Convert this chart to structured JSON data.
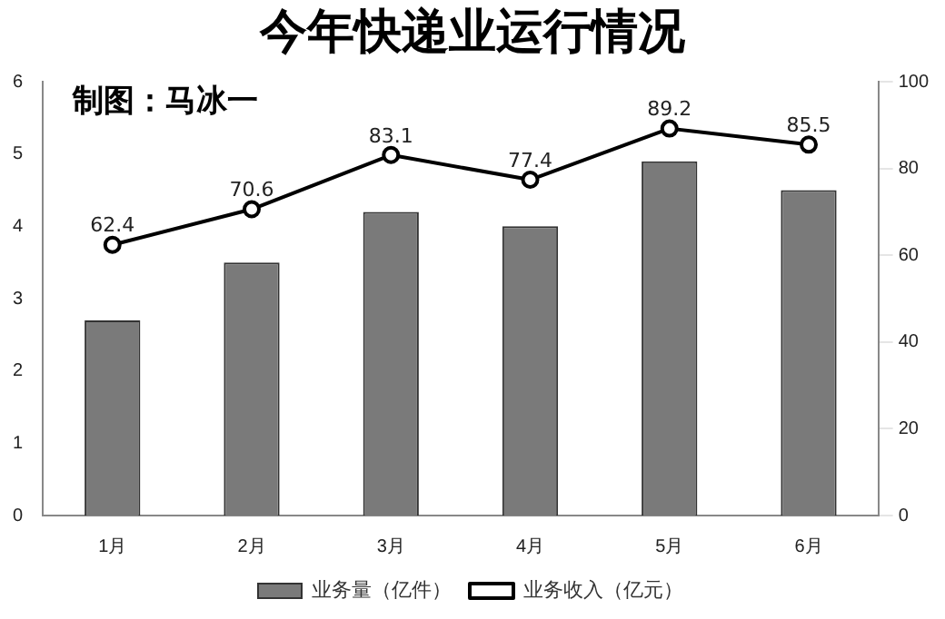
{
  "chart_data": {
    "type": "bar",
    "title": "今年快递业运行情况",
    "subtitle": "制图：马冰一",
    "categories": [
      "1月",
      "2月",
      "3月",
      "4月",
      "5月",
      "6月"
    ],
    "series": [
      {
        "name": "业务量（亿件）",
        "color": "#7a7a7a",
        "values": [
          2.7,
          3.5,
          4.2,
          4.0,
          4.9,
          4.5
        ]
      },
      {
        "name": "业务收入（亿元）",
        "type": "line",
        "axis": "y2",
        "color": "#000000",
        "values": [
          62.4,
          70.6,
          83.1,
          77.4,
          89.2,
          85.5
        ],
        "value_labels": [
          "62.4",
          "70.6",
          "83.1",
          "77.4",
          "89.2",
          "85.5"
        ]
      }
    ],
    "ylim": [
      0,
      6
    ],
    "yticks": [
      0,
      1,
      2,
      3,
      4,
      5,
      6
    ],
    "y2lim": [
      0,
      100
    ],
    "y2ticks": [
      0,
      20,
      40,
      60,
      80,
      100
    ],
    "grid": false,
    "legend": "bottom",
    "marker": "circle",
    "line_style": "solid"
  }
}
